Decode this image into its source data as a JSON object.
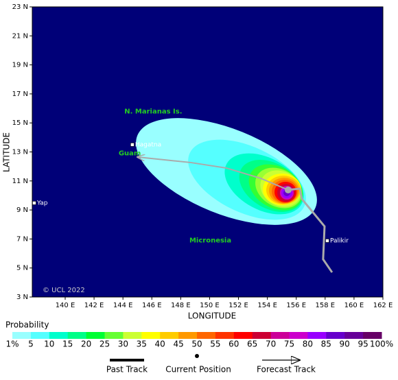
{
  "map": {
    "ylabel": "LATITUDE",
    "xlabel": "LONGITUDE",
    "credit": "© UCL 2022",
    "xlim": [
      137.72,
      162
    ],
    "ylim": [
      3,
      23
    ],
    "xticks": [
      {
        "value": 140,
        "label": "140 E"
      },
      {
        "value": 142,
        "label": "142 E"
      },
      {
        "value": 144,
        "label": "144 E"
      },
      {
        "value": 146,
        "label": "146 E"
      },
      {
        "value": 148,
        "label": "148 E"
      },
      {
        "value": 150,
        "label": "150 E"
      },
      {
        "value": 152,
        "label": "152 E"
      },
      {
        "value": 154,
        "label": "154 E"
      },
      {
        "value": 156,
        "label": "156 E"
      },
      {
        "value": 158,
        "label": "158 E"
      },
      {
        "value": 160,
        "label": "160 E"
      },
      {
        "value": 162,
        "label": "162 E"
      }
    ],
    "yticks": [
      {
        "value": 3,
        "label": "3 N"
      },
      {
        "value": 5,
        "label": "5 N"
      },
      {
        "value": 7,
        "label": "7 N"
      },
      {
        "value": 9,
        "label": "9 N"
      },
      {
        "value": 11,
        "label": "11 N"
      },
      {
        "value": 13,
        "label": "13 N"
      },
      {
        "value": 15,
        "label": "15 N"
      },
      {
        "value": 17,
        "label": "17 N"
      },
      {
        "value": 19,
        "label": "19 N"
      },
      {
        "value": 21,
        "label": "21 N"
      },
      {
        "value": 23,
        "label": "23 N"
      }
    ],
    "places": [
      {
        "name": "Hagatna",
        "lon": 144.65,
        "lat": 13.5
      },
      {
        "name": "Yap",
        "lon": 137.86,
        "lat": 9.48
      },
      {
        "name": "Palikir",
        "lon": 158.15,
        "lat": 6.88
      }
    ],
    "regions": [
      {
        "name": "N. Marianas Is.",
        "lon": 144.1,
        "lat": 15.8
      },
      {
        "name": "Guam",
        "lon": 143.7,
        "lat": 12.9
      },
      {
        "name": "Micronesia",
        "lon": 148.6,
        "lat": 6.9
      }
    ],
    "past_track": {
      "lon": [
        158.48,
        157.86,
        157.96,
        156.39,
        156.25,
        155.44
      ],
      "lat": [
        4.7,
        5.6,
        7.87,
        9.76,
        10.47,
        10.38
      ]
    },
    "forecast_track": {
      "lon": [
        155.44,
        153.54,
        151.16,
        148.69,
        144.99
      ],
      "lat": [
        10.38,
        11.18,
        11.89,
        12.27,
        12.65
      ]
    },
    "current_position": {
      "lon": 155.44,
      "lat": 10.38
    }
  },
  "colorbar": {
    "title": "Probability",
    "ticks": [
      {
        "value": 1,
        "label": "1%"
      },
      5,
      10,
      15,
      20,
      25,
      30,
      35,
      40,
      45,
      50,
      55,
      60,
      65,
      70,
      75,
      80,
      85,
      90,
      95,
      {
        "value": 100,
        "label": "100%"
      }
    ],
    "colors": [
      "#99ffff",
      "#55ffff",
      "#00ffcc",
      "#00ff88",
      "#00ff33",
      "#66ff33",
      "#ccff33",
      "#ffff00",
      "#ffcc00",
      "#ff9900",
      "#ff6600",
      "#ff3300",
      "#ff0000",
      "#cc0033",
      "#cc0099",
      "#cc00cc",
      "#9900ff",
      "#6600cc",
      "#660099",
      "#660066"
    ]
  },
  "legend": [
    "Past Track",
    "Current Position",
    "Forecast Track"
  ]
}
